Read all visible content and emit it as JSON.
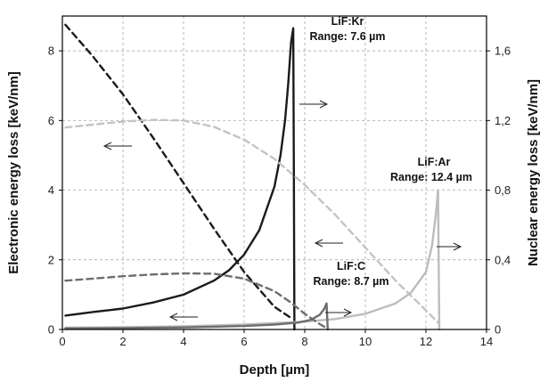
{
  "chart_data": {
    "type": "line",
    "xlabel": "Depth [µm]",
    "ylabel_left": "Electronic energy loss [keV/nm]",
    "ylabel_right": "Nuclear energy loss [keV/nm]",
    "xlim": [
      0,
      14
    ],
    "ylim_left": [
      0,
      9
    ],
    "ylim_right": [
      0,
      1.8
    ],
    "x_ticks": [
      "0",
      "2",
      "4",
      "6",
      "8",
      "10",
      "12",
      "14"
    ],
    "y_ticks_left": [
      "0",
      "2",
      "4",
      "6",
      "8"
    ],
    "y_ticks_right": [
      "0",
      "0,4",
      "0,8",
      "1,2",
      "1,6"
    ],
    "grid": true,
    "series": [
      {
        "color": "#1a1a1a",
        "dash": true,
        "axis": "left",
        "x": [
          0.1,
          1,
          2,
          3,
          4,
          5,
          6,
          7,
          7.6
        ],
        "y": [
          8.75,
          7.85,
          6.75,
          5.5,
          4.2,
          2.9,
          1.65,
          0.65,
          0.3
        ]
      },
      {
        "color": "#1a1a1a",
        "dash": false,
        "axis": "right",
        "x": [
          0.1,
          1,
          2,
          3,
          4,
          5,
          5.5,
          6,
          6.5,
          7,
          7.2,
          7.35,
          7.45,
          7.55,
          7.62,
          7.64,
          7.66
        ],
        "y": [
          0.08,
          0.1,
          0.12,
          0.155,
          0.2,
          0.28,
          0.34,
          0.43,
          0.57,
          0.82,
          1.0,
          1.2,
          1.4,
          1.65,
          1.73,
          0.9,
          0
        ]
      },
      {
        "color": "#c4c4c4",
        "dash": true,
        "axis": "left",
        "x": [
          0.1,
          1,
          2,
          3,
          4,
          5,
          6,
          7,
          8,
          9,
          10,
          11,
          12,
          12.4
        ],
        "y": [
          5.8,
          5.88,
          5.97,
          6.02,
          6.0,
          5.82,
          5.45,
          4.9,
          4.15,
          3.3,
          2.35,
          1.4,
          0.55,
          0.2
        ]
      },
      {
        "color": "#bdbdbd",
        "dash": false,
        "axis": "right",
        "x": [
          0.1,
          2,
          4,
          6,
          8,
          9,
          10,
          11,
          11.5,
          12,
          12.2,
          12.32,
          12.4,
          12.42,
          12.44
        ],
        "y": [
          0.01,
          0.013,
          0.018,
          0.028,
          0.045,
          0.06,
          0.09,
          0.15,
          0.21,
          0.33,
          0.48,
          0.65,
          0.8,
          0.4,
          0
        ]
      },
      {
        "color": "#6e6e6e",
        "dash": true,
        "axis": "left",
        "x": [
          0.1,
          1,
          2,
          3,
          4,
          5,
          6,
          7,
          7.5,
          8,
          8.5,
          8.7
        ],
        "y": [
          1.4,
          1.46,
          1.53,
          1.58,
          1.61,
          1.6,
          1.46,
          1.1,
          0.8,
          0.45,
          0.15,
          0.05
        ]
      },
      {
        "color": "#6e6e6e",
        "dash": false,
        "axis": "right",
        "x": [
          0.1,
          2,
          4,
          6,
          7,
          7.8,
          8.2,
          8.5,
          8.65,
          8.72,
          8.74,
          8.76
        ],
        "y": [
          0.006,
          0.008,
          0.012,
          0.02,
          0.028,
          0.04,
          0.055,
          0.085,
          0.12,
          0.15,
          0.07,
          0
        ]
      }
    ],
    "annotations": [
      {
        "line1": "LiF:Kr",
        "line2": "Range: 7.6 µm"
      },
      {
        "line1": "LiF:Ar",
        "line2": "Range: 12.4 µm"
      },
      {
        "line1": "LiF:C",
        "line2": "Range: 8.7 µm"
      }
    ]
  }
}
